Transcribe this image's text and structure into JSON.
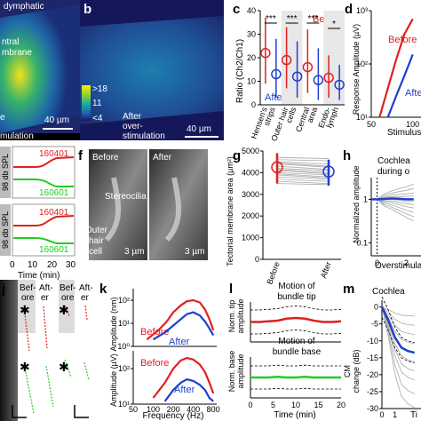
{
  "figure": {
    "panel_labels": {
      "b": "b",
      "c": "c",
      "d": "d",
      "f": "f",
      "g": "g",
      "h": "h",
      "j": "j",
      "k": "k",
      "l": "l",
      "m": "m"
    },
    "panel_a": {
      "fragments": [
        "dymphatic",
        "e",
        "ntral",
        "mbrane",
        "e",
        "mulation"
      ],
      "scale_bar": "40 µm"
    },
    "panel_b": {
      "scale_bar": "40 µm",
      "note_line1": "After",
      "note_line2": "over-",
      "note_line3": "stimulation",
      "colorbar_top": ">18",
      "colorbar_mid": "11",
      "colorbar_bottom": "<4"
    },
    "panel_e": {
      "ylabel": "98 db SPL",
      "top_ids": [
        "160401",
        "160601"
      ],
      "bottom_ids": [
        "160401",
        "160601"
      ],
      "xticks": [
        "0",
        "10",
        "20",
        "30"
      ],
      "xlabel": "Time (min)"
    },
    "panel_f": {
      "before": "Before",
      "after": "After",
      "stereocilia": "Stereocilia",
      "ohc_line1": "Outer",
      "ohc_line2": "hair",
      "ohc_line3": "cell",
      "scale1": "3 µm",
      "scale2": "3 µm"
    },
    "panel_j": {
      "col1_line1": "Bef-",
      "col1_line2": "ore",
      "col2_line1": "Aft-",
      "col2_line2": "er",
      "col3_line1": "Bef-",
      "col3_line2": "ore",
      "col4_line1": "Aft-",
      "col4_line2": "er"
    }
  },
  "colors": {
    "red": "#e02020",
    "blue": "#1f3fd0",
    "green": "#22cc22",
    "gray": "#a8a8a8"
  },
  "chart_data": [
    {
      "id": "c",
      "type": "scatter",
      "ylabel": "Ratio (Ch2/Ch1)",
      "ylim": [
        0,
        40
      ],
      "yticks": [
        "0",
        "10",
        "20",
        "30",
        "40"
      ],
      "categories": [
        "Hensen's cells",
        "Outer hair cells",
        "Central area",
        "Endo-lymph"
      ],
      "category_labels": [
        [
          "Hensen's",
          "strips"
        ],
        [
          "Outer hair",
          "cells"
        ],
        [
          "Central",
          "area"
        ],
        [
          "Endo-",
          "lymph"
        ]
      ],
      "legend": {
        "before": "Before",
        "after": "After"
      },
      "significance": [
        "***",
        "***",
        "***",
        "*"
      ],
      "series": [
        {
          "name": "Before",
          "values": [
            22,
            19,
            16,
            11.5
          ],
          "low": [
            9,
            7,
            5,
            3
          ],
          "high": [
            37,
            33,
            32,
            21
          ]
        },
        {
          "name": "After",
          "values": [
            13,
            12,
            10.5,
            8.5
          ],
          "low": [
            3,
            3,
            2,
            2
          ],
          "high": [
            28,
            27,
            24,
            17
          ]
        }
      ]
    },
    {
      "id": "d",
      "type": "line",
      "ylabel": "Response Amplitude (µV)",
      "xlabel": "Stimulus",
      "ylim_log": [
        1,
        3
      ],
      "yticks": [
        "10¹",
        "10²",
        "10³"
      ],
      "xticks": [
        "50",
        "100"
      ],
      "legend": {
        "before": "Before",
        "after": "After"
      },
      "series": [
        {
          "name": "Before",
          "x": [
            60,
            70,
            80,
            90,
            100
          ],
          "y": [
            10,
            35,
            120,
            360,
            700
          ]
        },
        {
          "name": "After",
          "x": [
            70,
            80,
            90,
            100
          ],
          "y": [
            10,
            25,
            60,
            150
          ]
        }
      ]
    },
    {
      "id": "g",
      "type": "line",
      "ylabel": "Tectorial membrane area (µm²)",
      "ylim": [
        0,
        5000
      ],
      "yticks": [
        "0",
        "1000",
        "2000",
        "3000",
        "4000",
        "5000"
      ],
      "categories": [
        "Before",
        "After"
      ],
      "mean": [
        4250,
        4050
      ],
      "error": [
        [
          3500,
          4900
        ],
        [
          3400,
          4600
        ]
      ],
      "pairs": [
        [
          4700,
          4650
        ],
        [
          4600,
          4550
        ],
        [
          4500,
          4400
        ],
        [
          4450,
          4300
        ],
        [
          4400,
          4250
        ],
        [
          4300,
          4150
        ],
        [
          4200,
          4100
        ],
        [
          4150,
          4000
        ],
        [
          4100,
          3950
        ],
        [
          4000,
          3900
        ],
        [
          3950,
          3800
        ],
        [
          3900,
          3750
        ],
        [
          3800,
          3700
        ],
        [
          3700,
          3600
        ],
        [
          3600,
          3500
        ],
        [
          3500,
          3450
        ]
      ]
    },
    {
      "id": "h",
      "type": "line",
      "title_line1": "Cochlea",
      "title_line2": "during o",
      "ylabel": "Normalized amplitude",
      "xlabel": "Overstimulat",
      "ylim_log": [
        -1.3,
        0.5
      ],
      "yticks": [
        "1",
        "0.1"
      ],
      "xticks": [
        "0",
        "2"
      ],
      "mean": {
        "x": [
          -0.4,
          0,
          0.5,
          1,
          1.5,
          2,
          2.5
        ],
        "y": [
          1,
          1,
          1.02,
          1.05,
          1.03,
          1.0,
          1.0
        ]
      }
    },
    {
      "id": "k",
      "type": "line",
      "xlabel": "Frequency (Hz)",
      "xticks": [
        "50",
        "100",
        "200",
        "400",
        "800"
      ],
      "subplots": [
        {
          "ylabel": "Amplitude (nm)",
          "yticks": [
            "10⁰",
            "10¹",
            "10²"
          ],
          "ylim_log": [
            0,
            2.5
          ],
          "series": [
            {
              "name": "Before",
              "x": [
                80,
                120,
                160,
                200,
                260,
                320,
                400,
                500,
                600,
                700,
                800
              ],
              "y": [
                2,
                5,
                12,
                30,
                60,
                90,
                100,
                80,
                40,
                15,
                5
              ]
            },
            {
              "name": "After",
              "x": [
                100,
                150,
                200,
                260,
                320,
                400,
                500,
                600,
                700,
                800
              ],
              "y": [
                2,
                4,
                8,
                15,
                25,
                30,
                22,
                12,
                6,
                3
              ]
            }
          ]
        },
        {
          "ylabel": "Amplitude (µV)",
          "yticks": [
            "10¹",
            "10²"
          ],
          "ylim_log": [
            1,
            2.5
          ],
          "series": [
            {
              "name": "Before",
              "x": [
                100,
                150,
                200,
                260,
                320,
                400,
                500,
                600,
                700,
                800
              ],
              "y": [
                15,
                40,
                100,
                170,
                200,
                180,
                130,
                80,
                40,
                20
              ]
            },
            {
              "name": "After",
              "x": [
                150,
                200,
                260,
                320,
                400,
                500,
                600,
                700,
                800
              ],
              "y": [
                12,
                25,
                40,
                50,
                45,
                35,
                25,
                15,
                12
              ]
            }
          ]
        }
      ],
      "legend": {
        "before": "Before",
        "after": "After"
      }
    },
    {
      "id": "l",
      "type": "line",
      "xlabel": "Time (min)",
      "xticks": [
        "0",
        "5",
        "10",
        "15",
        "20"
      ],
      "subplots": [
        {
          "title_line1": "Motion of",
          "title_line2": "bundle tip",
          "ylabel_line1": "Norm. tip",
          "ylabel_line2": "amplitude",
          "x": [
            0,
            2,
            4,
            6,
            8,
            10,
            12,
            14,
            16,
            18,
            20
          ],
          "y": [
            1.0,
            1.0,
            1.01,
            1.02,
            1.05,
            1.06,
            1.05,
            1.02,
            1.0,
            1.0,
            1.01
          ]
        },
        {
          "title_line1": "Motion of",
          "title_line2": "bundle base",
          "ylabel_line1": "Norm. base",
          "ylabel_line2": "amplitude",
          "x": [
            0,
            2,
            4,
            6,
            8,
            10,
            12,
            14,
            16,
            18,
            20
          ],
          "y": [
            1.0,
            1.0,
            1.0,
            1.01,
            1.0,
            1.0,
            1.01,
            1.0,
            1.0,
            1.0,
            1.0
          ]
        }
      ]
    },
    {
      "id": "m",
      "type": "line",
      "title": "Cochlea",
      "ylabel_line1": "CM",
      "ylabel_line2": "change (dB)",
      "xlabel": "Ti",
      "yticks": [
        "0",
        "-5",
        "-10",
        "-15",
        "-20",
        "-25",
        "-30"
      ],
      "ylim": [
        -30,
        2
      ],
      "xticks": [
        "0",
        "1"
      ],
      "mean": {
        "x": [
          0,
          5,
          10,
          15,
          20,
          25
        ],
        "y": [
          0,
          -4,
          -9,
          -12,
          -13,
          -13.5
        ]
      }
    }
  ]
}
